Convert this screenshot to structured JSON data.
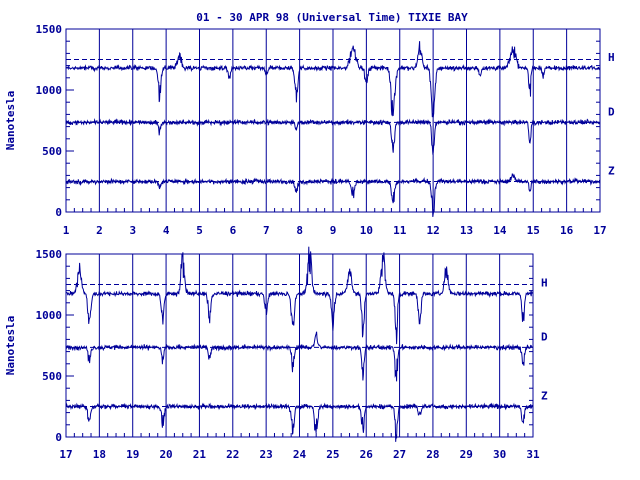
{
  "chart_data": [
    {
      "type": "line",
      "title": "01 - 30 APR 98 (Universal Time) TIXIE BAY",
      "ylabel": "Nanotesla",
      "ylim": [
        0,
        1500
      ],
      "yticks": [
        "0",
        "500",
        "1000",
        "1500"
      ],
      "xlim": [
        1,
        17
      ],
      "xticks": [
        "1",
        "2",
        "3",
        "4",
        "5",
        "6",
        "7",
        "8",
        "9",
        "10",
        "11",
        "12",
        "13",
        "14",
        "15",
        "16",
        "17"
      ],
      "grid": "vertical day lines",
      "reference_lines": [
        1250,
        735,
        250
      ],
      "series": [
        {
          "name": "H",
          "baseline": 1180,
          "events": [
            [
              3.8,
              -190,
              0.06
            ],
            [
              4.4,
              110,
              0.08
            ],
            [
              5.9,
              -80,
              0.05
            ],
            [
              7.0,
              -60,
              0.05
            ],
            [
              7.9,
              -220,
              0.06
            ],
            [
              9.6,
              170,
              0.12
            ],
            [
              10.0,
              -120,
              0.06
            ],
            [
              10.8,
              -350,
              0.08
            ],
            [
              11.6,
              160,
              0.08
            ],
            [
              12.0,
              -420,
              0.07
            ],
            [
              13.4,
              -60,
              0.05
            ],
            [
              14.4,
              150,
              0.12
            ],
            [
              14.9,
              -230,
              0.04
            ],
            [
              15.3,
              -60,
              0.04
            ]
          ]
        },
        {
          "name": "D",
          "baseline": 735,
          "events": [
            [
              3.8,
              -60,
              0.05
            ],
            [
              7.9,
              -50,
              0.05
            ],
            [
              10.8,
              -200,
              0.06
            ],
            [
              12.0,
              -240,
              0.05
            ],
            [
              14.9,
              -180,
              0.04
            ]
          ]
        },
        {
          "name": "Z",
          "baseline": 250,
          "events": [
            [
              3.8,
              -40,
              0.05
            ],
            [
              7.9,
              -80,
              0.06
            ],
            [
              9.6,
              -120,
              0.07
            ],
            [
              10.8,
              -160,
              0.07
            ],
            [
              12.0,
              -230,
              0.06
            ],
            [
              14.4,
              50,
              0.08
            ],
            [
              14.9,
              -80,
              0.04
            ]
          ]
        }
      ]
    },
    {
      "type": "line",
      "ylabel": "Nanotesla",
      "ylim": [
        0,
        1500
      ],
      "yticks": [
        "0",
        "500",
        "1000",
        "1500"
      ],
      "xlim": [
        17,
        31
      ],
      "xticks": [
        "17",
        "18",
        "19",
        "20",
        "21",
        "22",
        "23",
        "24",
        "25",
        "26",
        "27",
        "28",
        "29",
        "30",
        "31"
      ],
      "grid": "vertical day lines",
      "reference_lines": [
        1250,
        735,
        250
      ],
      "series": [
        {
          "name": "H",
          "baseline": 1175,
          "events": [
            [
              17.4,
              200,
              0.08
            ],
            [
              17.7,
              -250,
              0.06
            ],
            [
              19.9,
              -200,
              0.06
            ],
            [
              20.5,
              280,
              0.07
            ],
            [
              21.3,
              -180,
              0.06
            ],
            [
              23.0,
              -150,
              0.06
            ],
            [
              23.8,
              -280,
              0.06
            ],
            [
              24.3,
              300,
              0.08
            ],
            [
              25.0,
              -220,
              0.06
            ],
            [
              25.5,
              180,
              0.08
            ],
            [
              25.9,
              -320,
              0.05
            ],
            [
              26.5,
              300,
              0.08
            ],
            [
              26.9,
              -350,
              0.05
            ],
            [
              27.6,
              -200,
              0.06
            ],
            [
              28.4,
              180,
              0.08
            ],
            [
              30.7,
              -200,
              0.05
            ]
          ]
        },
        {
          "name": "D",
          "baseline": 735,
          "events": [
            [
              17.7,
              -120,
              0.05
            ],
            [
              19.9,
              -100,
              0.05
            ],
            [
              21.3,
              -80,
              0.05
            ],
            [
              23.8,
              -160,
              0.05
            ],
            [
              24.5,
              100,
              0.06
            ],
            [
              25.9,
              -240,
              0.05
            ],
            [
              26.9,
              -260,
              0.05
            ],
            [
              30.7,
              -140,
              0.05
            ]
          ]
        },
        {
          "name": "Z",
          "baseline": 250,
          "events": [
            [
              17.7,
              -120,
              0.06
            ],
            [
              19.9,
              -130,
              0.06
            ],
            [
              23.8,
              -200,
              0.06
            ],
            [
              24.5,
              -220,
              0.06
            ],
            [
              25.9,
              -200,
              0.05
            ],
            [
              26.9,
              -240,
              0.05
            ],
            [
              27.6,
              -60,
              0.06
            ],
            [
              30.7,
              -150,
              0.05
            ]
          ]
        }
      ]
    }
  ],
  "colors": {
    "line": "#000099",
    "axis": "#000099",
    "grid": "#000099",
    "text": "#000099"
  }
}
